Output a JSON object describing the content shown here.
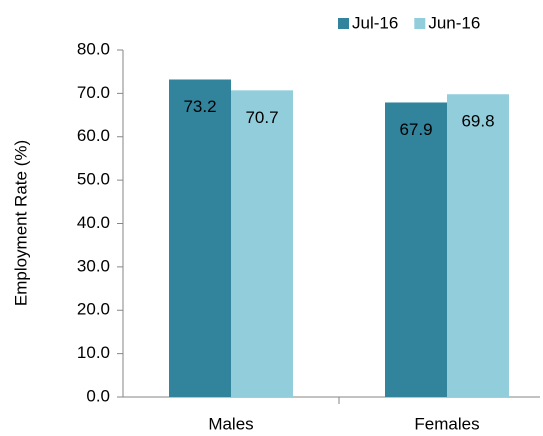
{
  "chart_data": {
    "type": "bar",
    "y_label": "Employment Rate (%)",
    "categories": [
      "Males",
      "Females"
    ],
    "series": [
      {
        "name": "Jul-16",
        "color": "#31849b",
        "values": [
          73.2,
          67.9
        ]
      },
      {
        "name": "Jun-16",
        "color": "#92cddc",
        "values": [
          70.7,
          69.8
        ]
      }
    ],
    "ylim": [
      0,
      80
    ],
    "yticks": [
      {
        "value": 0,
        "label": "0.0"
      },
      {
        "value": 10,
        "label": "10.0"
      },
      {
        "value": 20,
        "label": "20.0"
      },
      {
        "value": 30,
        "label": "30.0"
      },
      {
        "value": 40,
        "label": "40.0"
      },
      {
        "value": 50,
        "label": "50.0"
      },
      {
        "value": 60,
        "label": "60.0"
      },
      {
        "value": 70,
        "label": "70.0"
      },
      {
        "value": 80,
        "label": "80.0"
      }
    ],
    "legend": "top",
    "grid": false
  }
}
